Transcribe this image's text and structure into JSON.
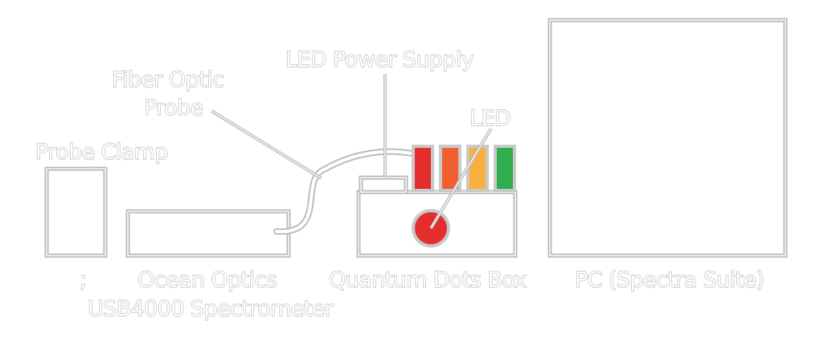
{
  "labels": {
    "pc": "PC (Spectra Suite)",
    "led_power_supply": "LED Power Supply",
    "fiber_optic_probe_line1": "Fiber Optic",
    "fiber_optic_probe_line2": "Probe",
    "led": "LED",
    "probe_clamp": "Probe Clamp",
    "ocean_optics_line1": "Ocean Optics",
    "ocean_optics_line2": "USB4000 Spectrometer",
    "quantum_dots_box": "Quantum Dots Box",
    "stray_mark": ";"
  },
  "colors": {
    "outline": "#b9b9b9",
    "led_red": "#e62d2d",
    "led_orange": "#ef5f2f",
    "led_yellow": "#f8b03e",
    "led_green": "#2eae4d",
    "led_indicator": "#e62d2d"
  }
}
